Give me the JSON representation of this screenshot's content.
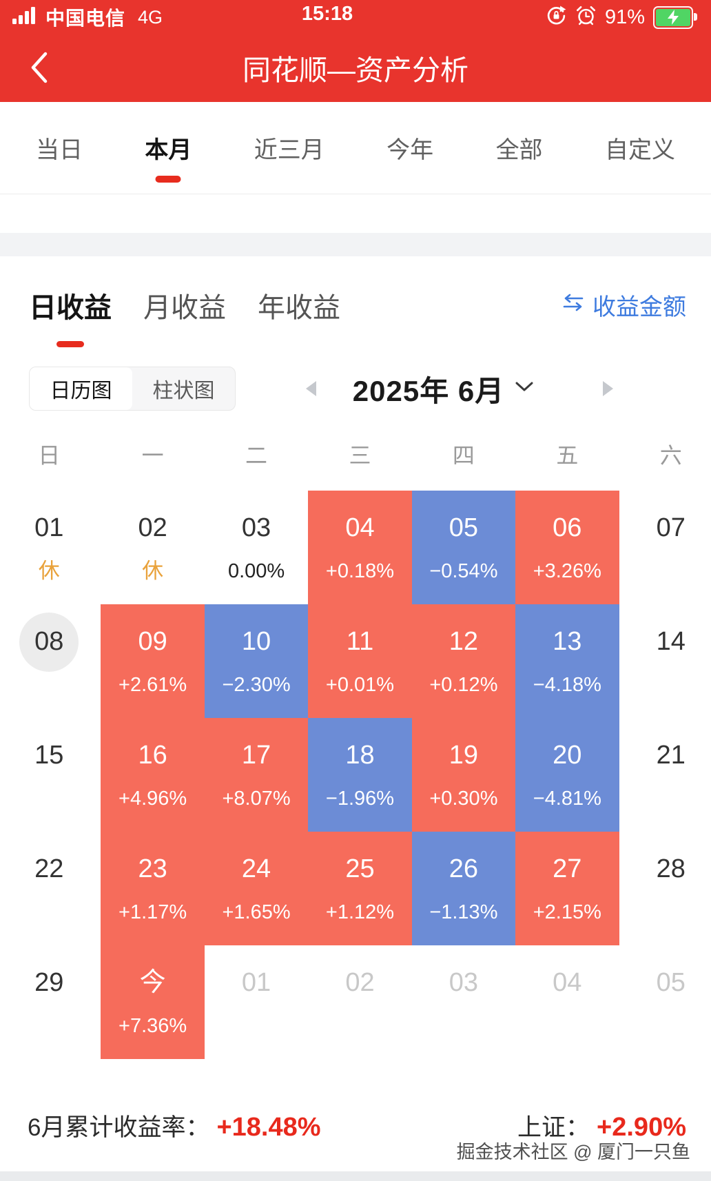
{
  "status_bar": {
    "carrier": "中国电信",
    "network": "4G",
    "time": "15:18",
    "battery_percent": "91%"
  },
  "nav": {
    "title": "同花顺—资产分析"
  },
  "period_tabs": {
    "items": [
      "当日",
      "本月",
      "近三月",
      "今年",
      "全部",
      "自定义"
    ],
    "active_index": 1
  },
  "section_tabs": {
    "items": [
      "日收益",
      "月收益",
      "年收益"
    ],
    "active_index": 0,
    "amount_toggle_label": "收益金额"
  },
  "view_toggle": {
    "options": [
      "日历图",
      "柱状图"
    ],
    "active_index": 0
  },
  "month_nav": {
    "label": "2025年 6月"
  },
  "calendar": {
    "weekdays": [
      "日",
      "一",
      "二",
      "三",
      "四",
      "五",
      "六"
    ],
    "rows": [
      [
        {
          "day": "01",
          "value": "休",
          "kind": "rest"
        },
        {
          "day": "02",
          "value": "休",
          "kind": "rest"
        },
        {
          "day": "03",
          "value": "0.00%",
          "kind": "flat"
        },
        {
          "day": "04",
          "value": "+0.18%",
          "kind": "up"
        },
        {
          "day": "05",
          "value": "−0.54%",
          "kind": "down"
        },
        {
          "day": "06",
          "value": "+3.26%",
          "kind": "up"
        },
        {
          "day": "07",
          "value": "",
          "kind": "plain"
        }
      ],
      [
        {
          "day": "08",
          "value": "",
          "kind": "plain",
          "circled": true
        },
        {
          "day": "09",
          "value": "+2.61%",
          "kind": "up"
        },
        {
          "day": "10",
          "value": "−2.30%",
          "kind": "down"
        },
        {
          "day": "11",
          "value": "+0.01%",
          "kind": "up"
        },
        {
          "day": "12",
          "value": "+0.12%",
          "kind": "up"
        },
        {
          "day": "13",
          "value": "−4.18%",
          "kind": "down"
        },
        {
          "day": "14",
          "value": "",
          "kind": "plain"
        }
      ],
      [
        {
          "day": "15",
          "value": "",
          "kind": "plain"
        },
        {
          "day": "16",
          "value": "+4.96%",
          "kind": "up"
        },
        {
          "day": "17",
          "value": "+8.07%",
          "kind": "up"
        },
        {
          "day": "18",
          "value": "−1.96%",
          "kind": "down"
        },
        {
          "day": "19",
          "value": "+0.30%",
          "kind": "up"
        },
        {
          "day": "20",
          "value": "−4.81%",
          "kind": "down"
        },
        {
          "day": "21",
          "value": "",
          "kind": "plain"
        }
      ],
      [
        {
          "day": "22",
          "value": "",
          "kind": "plain"
        },
        {
          "day": "23",
          "value": "+1.17%",
          "kind": "up"
        },
        {
          "day": "24",
          "value": "+1.65%",
          "kind": "up"
        },
        {
          "day": "25",
          "value": "+1.12%",
          "kind": "up"
        },
        {
          "day": "26",
          "value": "−1.13%",
          "kind": "down"
        },
        {
          "day": "27",
          "value": "+2.15%",
          "kind": "up"
        },
        {
          "day": "28",
          "value": "",
          "kind": "plain"
        }
      ],
      [
        {
          "day": "29",
          "value": "",
          "kind": "plain"
        },
        {
          "day": "今",
          "value": "+7.36%",
          "kind": "up"
        },
        {
          "day": "01",
          "value": "",
          "kind": "next"
        },
        {
          "day": "02",
          "value": "",
          "kind": "next"
        },
        {
          "day": "03",
          "value": "",
          "kind": "next"
        },
        {
          "day": "04",
          "value": "",
          "kind": "next"
        },
        {
          "day": "05",
          "value": "",
          "kind": "next"
        }
      ]
    ]
  },
  "summary": {
    "label": "6月累计收益率：",
    "value": "+18.48%",
    "index_label": "上证：",
    "index_value": "+2.90%"
  },
  "watermark": "掘金技术社区 @ 厦门一只鱼",
  "colors": {
    "header_red": "#E8342D",
    "accent_red": "#E72C1E",
    "up_cell": "#F66C5B",
    "down_cell": "#6C8CD6",
    "rest_orange": "#E9A23B",
    "link_blue": "#3E7BDF",
    "battery_green": "#50D564"
  },
  "icons": {
    "signal": "signal-bars-icon",
    "rotation_lock": "rotation-lock-icon",
    "alarm": "alarm-clock-icon",
    "battery": "battery-charging-icon",
    "back": "back-chevron-icon",
    "swap": "swap-arrows-icon",
    "month_dropdown": "chevron-down-icon",
    "prev_month": "prev-month-arrow-icon",
    "next_month": "next-month-arrow-icon"
  }
}
